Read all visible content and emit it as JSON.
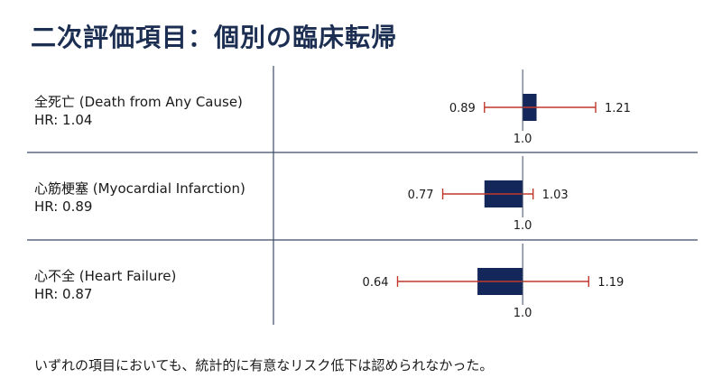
{
  "title": "二次評価項目：個別の臨床転帰",
  "footnote": "いずれの項目においても、統計的に有意なリスク低下は認められなかった。",
  "colors": {
    "bar": "#14275a",
    "whisker": "#c0392b",
    "divider": "#3c4b66",
    "title": "#1c2f52"
  },
  "chart_data": {
    "type": "bar",
    "reference_value": 1.0,
    "reference_label": "1.0",
    "rows": [
      {
        "name": "全死亡 (Death from Any Cause)",
        "hr_label": "HR: 1.04",
        "hr": 1.04,
        "ci_low": 0.89,
        "ci_high": 1.21,
        "ci_low_label": "0.89",
        "ci_high_label": "1.21"
      },
      {
        "name": "心筋梗塞 (Myocardial Infarction)",
        "hr_label": "HR: 0.89",
        "hr": 0.89,
        "ci_low": 0.77,
        "ci_high": 1.03,
        "ci_low_label": "0.77",
        "ci_high_label": "1.03"
      },
      {
        "name": "心不全 (Heart Failure)",
        "hr_label": "HR: 0.87",
        "hr": 0.87,
        "ci_low": 0.64,
        "ci_high": 1.19,
        "ci_low_label": "0.64",
        "ci_high_label": "1.19"
      }
    ]
  }
}
